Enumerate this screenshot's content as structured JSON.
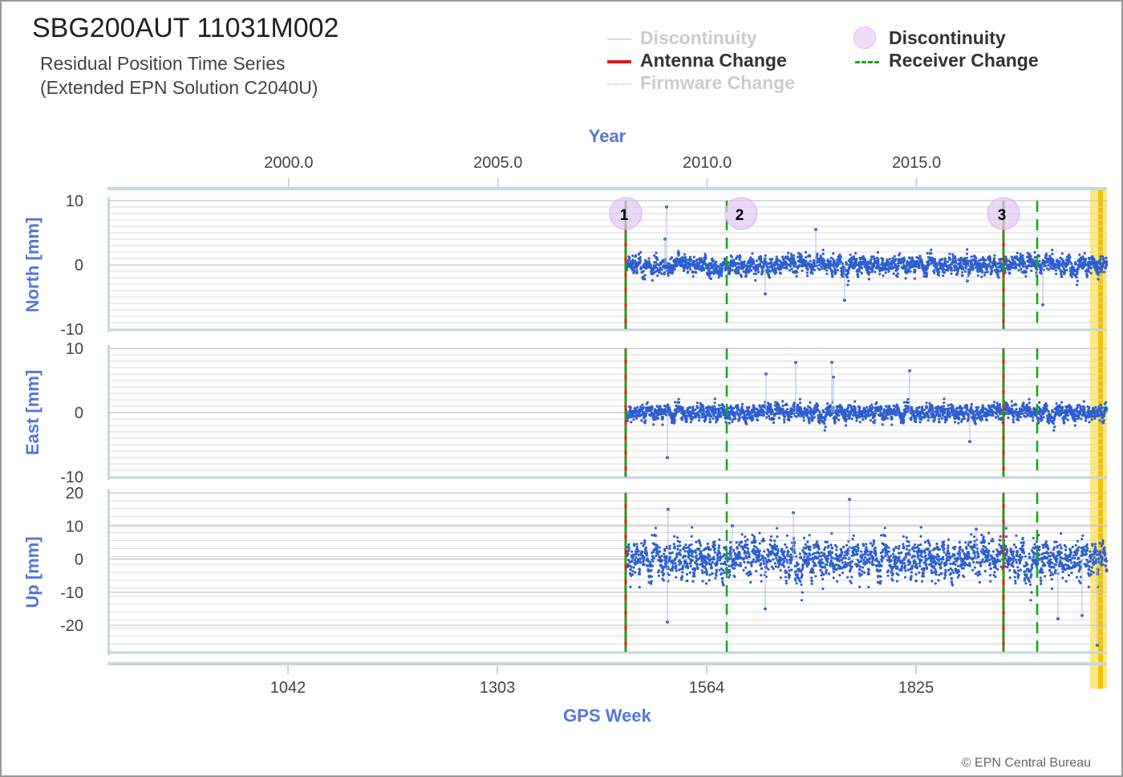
{
  "header": {
    "title": "SBG200AUT 11031M002",
    "subtitle_line1": "Residual Position Time Series",
    "subtitle_line2": "(Extended EPN Solution C2040U)",
    "copyright": "© EPN Central Bureau"
  },
  "legend": [
    {
      "label": "Discontinuity",
      "style": "thin-line",
      "color": "#dddddd",
      "state": "faded"
    },
    {
      "label": "Antenna Change",
      "style": "solid-line",
      "color": "#ee1111",
      "state": "on"
    },
    {
      "label": "Firmware Change",
      "style": "dashed-line",
      "color": "#dddddd",
      "state": "faded"
    },
    {
      "label": "Discontinuity",
      "style": "circle",
      "color": "#e3c8f3",
      "state": "on"
    },
    {
      "label": "Receiver Change",
      "style": "dashed-line",
      "color": "#11aa11",
      "state": "on"
    }
  ],
  "chart_data": {
    "type": "scatter",
    "top_axis": {
      "label": "Year",
      "ticks": [
        "2000.0",
        "2005.0",
        "2010.0",
        "2015.0"
      ],
      "tick_years": [
        2000.0,
        2005.0,
        2010.0,
        2015.0
      ]
    },
    "bottom_axis": {
      "label": "GPS Week",
      "ticks": [
        "1042",
        "1303",
        "1564",
        "1825"
      ],
      "tick_weeks": [
        1042,
        1303,
        1564,
        1825
      ],
      "range": [
        817,
        2063
      ]
    },
    "panels": [
      {
        "name": "north",
        "ylabel": "North [mm]",
        "ylim": [
          -10,
          10
        ],
        "ticks": [
          "10",
          "0",
          "-10"
        ],
        "tick_values": [
          10,
          0,
          -10
        ],
        "noise": 0.9,
        "spikes": [
          [
            1514,
            9.0
          ],
          [
            1512,
            4.0
          ],
          [
            1700,
            5.5
          ],
          [
            1736,
            -5.5
          ],
          [
            1983,
            -6.2
          ],
          [
            1637,
            -4.5
          ],
          [
            1889,
            -2.5
          ]
        ]
      },
      {
        "name": "east",
        "ylabel": "East [mm]",
        "ylim": [
          -10,
          10
        ],
        "ticks": [
          "10",
          "0",
          "-10"
        ],
        "tick_values": [
          10,
          0,
          -10
        ],
        "noise": 0.8,
        "spikes": [
          [
            1515,
            -7.0
          ],
          [
            1675,
            7.8
          ],
          [
            1720,
            7.8
          ],
          [
            1722,
            5.5
          ],
          [
            1817,
            6.5
          ],
          [
            1892,
            -4.5
          ],
          [
            1638,
            6.0
          ]
        ]
      },
      {
        "name": "up",
        "ylabel": "Up [mm]",
        "ylim": [
          -28,
          20
        ],
        "ticks": [
          "20",
          "10",
          "0",
          "-10",
          "-20"
        ],
        "tick_values": [
          20,
          10,
          0,
          -10,
          -20
        ],
        "noise": 3.6,
        "spikes": [
          [
            1516,
            15.0
          ],
          [
            1515,
            -19.0
          ],
          [
            1742,
            18.0
          ],
          [
            1637,
            -15.0
          ],
          [
            1672,
            14.0
          ],
          [
            2002,
            -18.0
          ],
          [
            2032,
            -17.0
          ],
          [
            2051,
            -26.0
          ],
          [
            1596,
            10.0
          ],
          [
            1900,
            9.0
          ]
        ]
      }
    ],
    "data_start_week": 1463,
    "data_end_week": 2063,
    "events": [
      {
        "week": 1463,
        "types": [
          "antenna",
          "receiver"
        ],
        "discontinuity": "1"
      },
      {
        "week": 1589,
        "types": [
          "receiver"
        ],
        "discontinuity": "2"
      },
      {
        "week": 1934,
        "types": [
          "antenna",
          "receiver"
        ],
        "discontinuity": "3"
      },
      {
        "week": 1976,
        "types": [
          "receiver"
        ]
      }
    ],
    "highlight_weeks": [
      2040,
      2063
    ],
    "colors": {
      "points": "#2e5fd1",
      "antenna": "#ee1111",
      "receiver": "#11aa11",
      "discontinuity": "#e3c8f3",
      "highlight": "#ffe97a",
      "highlight_edge": "#f0c400",
      "axis": "#c9d6e3",
      "axis_label": "#5577dd"
    }
  }
}
